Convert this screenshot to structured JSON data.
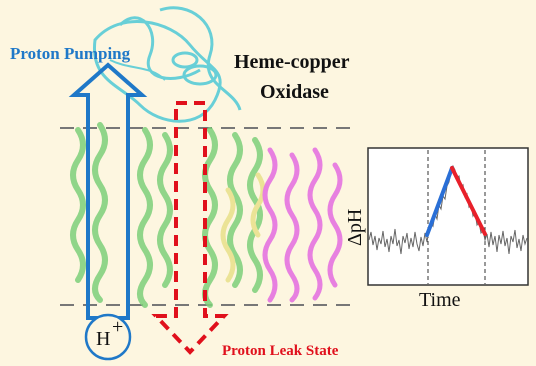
{
  "labels": {
    "proton_pumping": "Proton Pumping",
    "title_line1": "Heme-copper",
    "title_line2": "Oxidase",
    "proton_leak": "Proton Leak State",
    "proton_symbol": "H",
    "proton_charge": "+"
  },
  "inset_plot": {
    "ylabel": "ΔpH",
    "xlabel": "Time",
    "rise_color": "#2a6fd6",
    "fall_color": "#e8202a",
    "trace_color": "#666666"
  },
  "colors": {
    "background": "#fdf6e0",
    "pump_arrow": "#1f78c8",
    "leak_arrow": "#e0101c",
    "helix_green": "#7ed07a",
    "helix_magenta": "#e46ce0",
    "helix_cyan": "#4fc9d6",
    "helix_yellow": "#e8e08a"
  }
}
